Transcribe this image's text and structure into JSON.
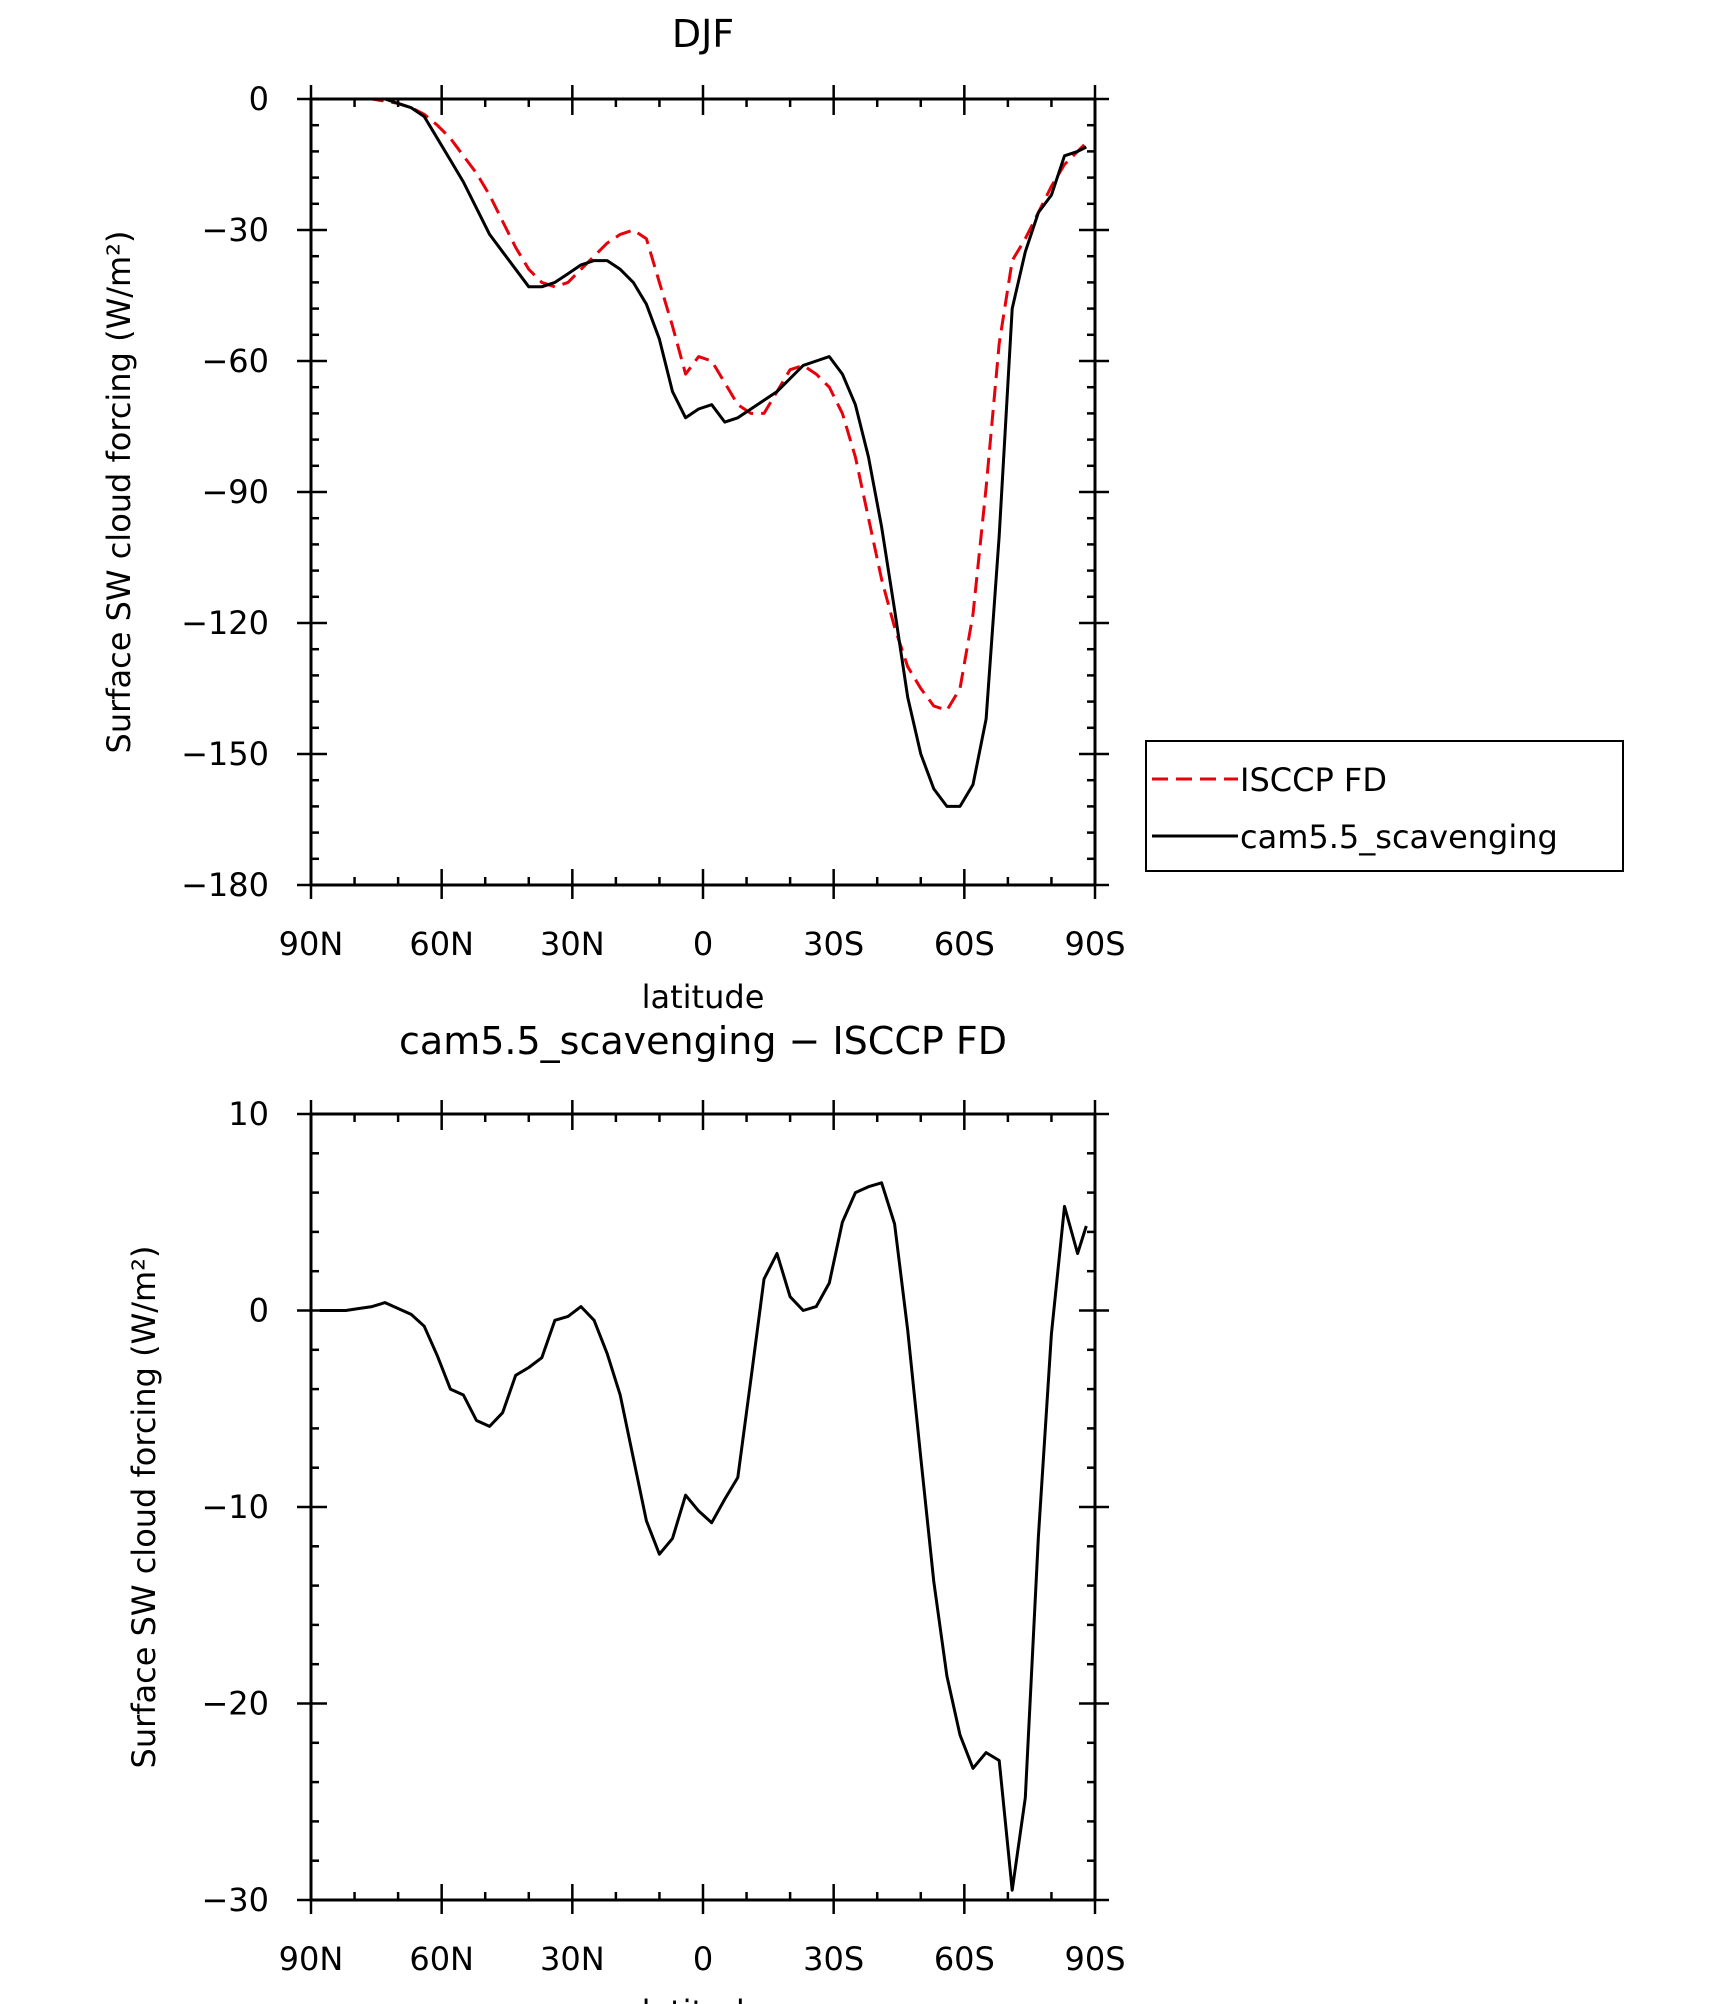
{
  "chart_data": [
    {
      "type": "line",
      "title": "DJF",
      "xlabel": "latitude",
      "ylabel": "Surface SW cloud forcing (W/m²)",
      "xlim": [
        -90,
        90
      ],
      "ylim": [
        -180,
        0
      ],
      "x_ticks": [
        -90,
        -60,
        -30,
        0,
        30,
        60,
        90
      ],
      "x_tick_labels": [
        "90N",
        "60N",
        "30N",
        "0",
        "30S",
        "60S",
        "90S"
      ],
      "y_ticks": [
        0,
        -30,
        -60,
        -90,
        -120,
        -150,
        -180
      ],
      "y_tick_labels": [
        "0",
        "−30",
        "−60",
        "−90",
        "−120",
        "−150",
        "−180"
      ],
      "legend_position": "right",
      "series": [
        {
          "name": "ISCCP FD",
          "color": "#e8000b",
          "dash": "dashed",
          "x": [
            -88,
            -85,
            -82,
            -79,
            -76,
            -73,
            -70,
            -67,
            -64,
            -61,
            -58,
            -55,
            -52,
            -49,
            -46,
            -43,
            -40,
            -37,
            -34,
            -31,
            -28,
            -25,
            -22,
            -19,
            -16,
            -13,
            -10,
            -7,
            -4,
            -1,
            2,
            5,
            8,
            11,
            14,
            17,
            20,
            23,
            26,
            29,
            32,
            35,
            38,
            41,
            44,
            47,
            50,
            53,
            56,
            59,
            62,
            65,
            68,
            71,
            74,
            77,
            80,
            83,
            86,
            88
          ],
          "y": [
            0,
            0,
            0,
            0,
            0,
            -0.5,
            -1,
            -2,
            -3.5,
            -6,
            -9,
            -13,
            -17,
            -22,
            -28,
            -34,
            -39,
            -42,
            -43,
            -42,
            -39,
            -36,
            -33,
            -31,
            -30,
            -32,
            -42,
            -52,
            -63,
            -59,
            -60,
            -65,
            -70,
            -72,
            -72,
            -67,
            -62,
            -61,
            -63,
            -66,
            -72,
            -82,
            -96,
            -110,
            -121,
            -130,
            -135,
            -139,
            -140,
            -135,
            -118,
            -89,
            -56,
            -37,
            -32,
            -26,
            -20,
            -15,
            -12,
            -10
          ]
        },
        {
          "name": "cam5.5_scavenging",
          "color": "#000000",
          "dash": "solid",
          "x": [
            -88,
            -85,
            -82,
            -79,
            -76,
            -73,
            -70,
            -67,
            -64,
            -61,
            -58,
            -55,
            -52,
            -49,
            -46,
            -43,
            -40,
            -37,
            -34,
            -31,
            -28,
            -25,
            -22,
            -19,
            -16,
            -13,
            -10,
            -7,
            -4,
            -1,
            2,
            5,
            8,
            11,
            14,
            17,
            20,
            23,
            26,
            29,
            32,
            35,
            38,
            41,
            44,
            47,
            50,
            53,
            56,
            59,
            62,
            65,
            68,
            71,
            74,
            77,
            80,
            83,
            86,
            88
          ],
          "y": [
            0,
            0,
            0,
            0,
            0,
            0,
            -1,
            -2,
            -4,
            -9,
            -14,
            -19,
            -25,
            -31,
            -35,
            -39,
            -43,
            -43,
            -42,
            -40,
            -38,
            -37,
            -37,
            -39,
            -42,
            -47,
            -55,
            -67,
            -73,
            -71,
            -70,
            -74,
            -73,
            -71,
            -69,
            -67,
            -64,
            -61,
            -60,
            -59,
            -63,
            -70,
            -82,
            -98,
            -117,
            -137,
            -150,
            -158,
            -162,
            -162,
            -157,
            -142,
            -100,
            -48,
            -35,
            -26,
            -22,
            -13,
            -12,
            -11
          ]
        }
      ]
    },
    {
      "type": "line",
      "title": "cam5.5_scavenging − ISCCP FD",
      "xlabel": "latitude",
      "ylabel": "Surface SW cloud forcing (W/m²)",
      "xlim": [
        -90,
        90
      ],
      "ylim": [
        -30,
        10
      ],
      "x_ticks": [
        -90,
        -60,
        -30,
        0,
        30,
        60,
        90
      ],
      "x_tick_labels": [
        "90N",
        "60N",
        "30N",
        "0",
        "30S",
        "60S",
        "90S"
      ],
      "y_ticks": [
        10,
        0,
        -10,
        -20,
        -30
      ],
      "y_tick_labels": [
        "10",
        "0",
        "−10",
        "−20",
        "−30"
      ],
      "series": [
        {
          "color": "#000000",
          "dash": "solid",
          "x": [
            -88,
            -85,
            -82,
            -79,
            -76,
            -73,
            -70,
            -67,
            -64,
            -61,
            -58,
            -55,
            -52,
            -49,
            -46,
            -43,
            -40,
            -37,
            -34,
            -31,
            -28,
            -25,
            -22,
            -19,
            -16,
            -13,
            -10,
            -7,
            -4,
            -1,
            2,
            5,
            8,
            11,
            14,
            17,
            20,
            23,
            26,
            29,
            32,
            35,
            38,
            41,
            44,
            47,
            50,
            53,
            56,
            59,
            62,
            65,
            68,
            71,
            74,
            77,
            80,
            83,
            86,
            88
          ],
          "y": [
            0,
            0,
            0,
            0.1,
            0.2,
            0.4,
            0.1,
            -0.2,
            -0.8,
            -2.3,
            -4,
            -4.3,
            -5.6,
            -5.9,
            -5.2,
            -3.3,
            -2.9,
            -2.4,
            -0.5,
            -0.3,
            0.2,
            -0.5,
            -2.2,
            -4.3,
            -7.5,
            -10.7,
            -12.4,
            -11.6,
            -9.4,
            -10.2,
            -10.8,
            -9.6,
            -8.5,
            -3.5,
            1.6,
            2.9,
            0.7,
            0,
            0.2,
            1.4,
            4.5,
            6,
            6.3,
            6.5,
            4.4,
            -1,
            -7.5,
            -13.8,
            -18.6,
            -21.6,
            -23.3,
            -22.5,
            -22.9,
            -29.5,
            -24.8,
            -11.5,
            -1.2,
            5.3,
            2.9,
            4.3
          ]
        }
      ]
    }
  ]
}
